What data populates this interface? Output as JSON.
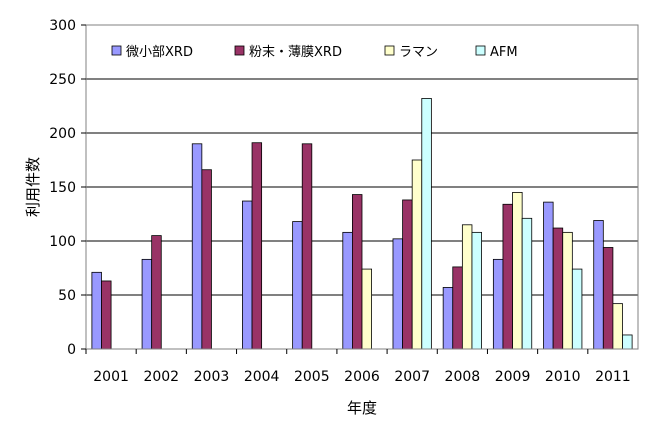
{
  "chart_data": {
    "type": "bar",
    "title": "",
    "xlabel": "年度",
    "ylabel": "利用件数",
    "ylim": [
      0,
      300
    ],
    "yticks": [
      0,
      50,
      100,
      150,
      200,
      250,
      300
    ],
    "grid": true,
    "legend_position": "top",
    "categories": [
      "2001",
      "2002",
      "2003",
      "2004",
      "2005",
      "2006",
      "2007",
      "2008",
      "2009",
      "2010",
      "2011"
    ],
    "series": [
      {
        "name": "微小部XRD",
        "color": "#9999ff",
        "values": [
          71,
          83,
          190,
          137,
          118,
          108,
          102,
          57,
          83,
          136,
          119
        ]
      },
      {
        "name": "粉末・薄膜XRD",
        "color": "#993366",
        "values": [
          63,
          105,
          166,
          191,
          190,
          143,
          138,
          76,
          134,
          112,
          94
        ]
      },
      {
        "name": "ラマン",
        "color": "#ffffcc",
        "values": [
          0,
          0,
          0,
          0,
          0,
          74,
          175,
          115,
          145,
          108,
          42
        ]
      },
      {
        "name": "AFM",
        "color": "#ccffff",
        "values": [
          0,
          0,
          0,
          0,
          0,
          0,
          232,
          108,
          121,
          74,
          13
        ]
      }
    ]
  }
}
